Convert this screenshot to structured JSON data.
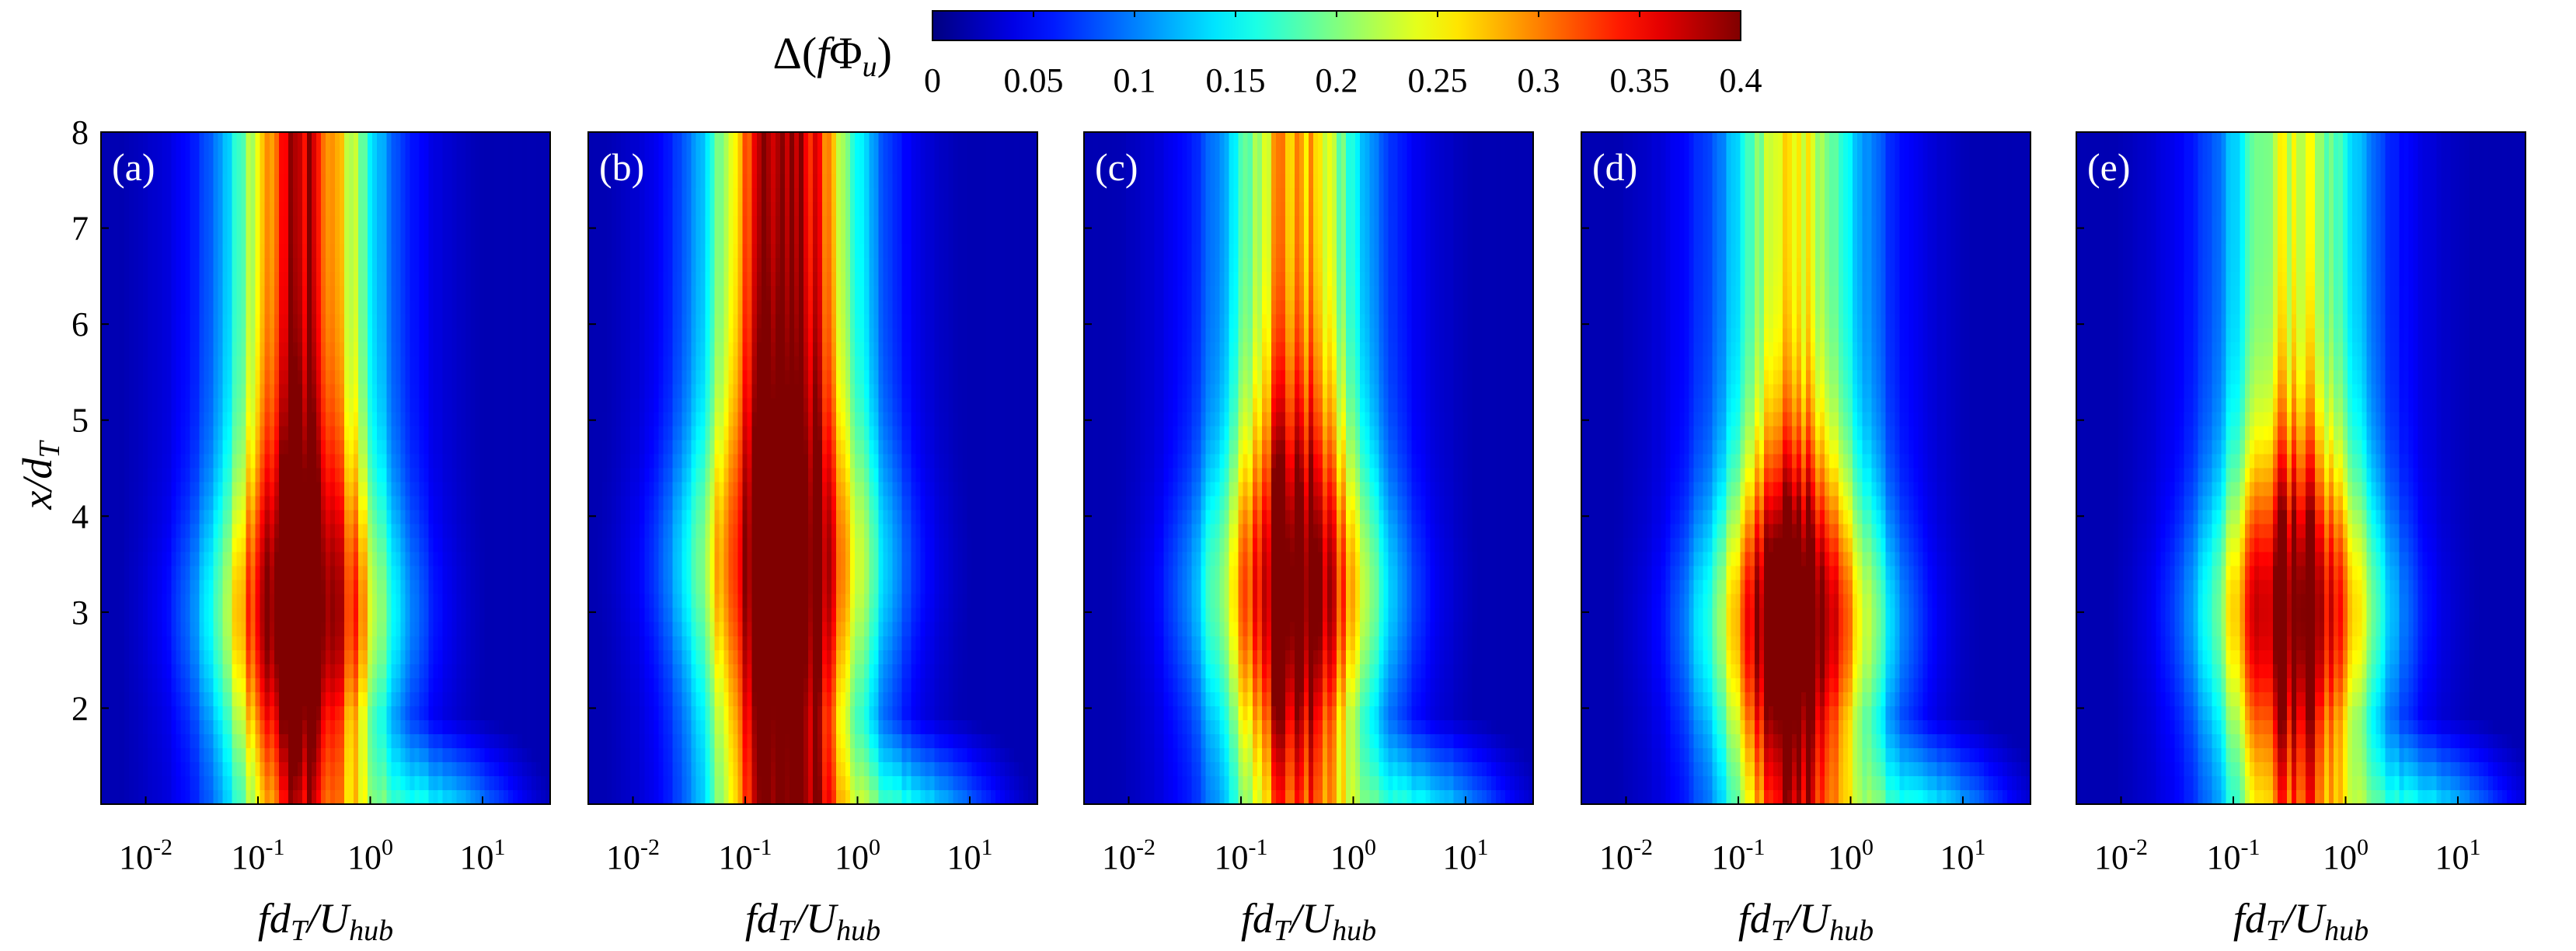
{
  "chart_data": {
    "type": "heatmap",
    "colormap": "jet",
    "colorbar": {
      "label": "Δ(fΦu)",
      "label_parts": {
        "delta": "Δ(",
        "f": "f",
        "phi": "Φ",
        "sub": "u"
      },
      "range": [
        0,
        0.4
      ],
      "ticks": [
        0,
        0.05,
        0.1,
        0.15,
        0.2,
        0.25,
        0.3,
        0.35,
        0.4
      ],
      "tick_labels": [
        "0",
        "0.05",
        "0.1",
        "0.15",
        "0.2",
        "0.25",
        "0.3",
        "0.35",
        "0.4"
      ]
    },
    "shared": {
      "xscale": "log",
      "xlim": [
        0.004,
        40
      ],
      "ylim": [
        1,
        8
      ],
      "xticks": [
        0.01,
        0.1,
        1,
        10
      ],
      "xtick_labels": [
        {
          "base": "10",
          "exp": "-2"
        },
        {
          "base": "10",
          "exp": "-1"
        },
        {
          "base": "10",
          "exp": "0"
        },
        {
          "base": "10",
          "exp": "1"
        }
      ],
      "yticks": [
        2,
        3,
        4,
        5,
        6,
        7,
        8
      ],
      "ytick_labels": [
        "2",
        "3",
        "4",
        "5",
        "6",
        "7",
        "8"
      ],
      "xlabel": "fdT/Uhub",
      "xlabel_parts": {
        "pre": "fd",
        "sub1": "T",
        "slash": "/U",
        "sub2": "hub"
      },
      "ylabel": "x/dT",
      "ylabel_parts": {
        "pre": "x/d",
        "sub": "T"
      }
    },
    "panels": [
      {
        "label": "(a)",
        "peak": 0.4,
        "x_peak": 0.25,
        "y_peak": 3.0,
        "width_decades": 0.4,
        "near_wake": 0.22,
        "far_wake": 0.3,
        "y_spread": 2.0
      },
      {
        "label": "(b)",
        "peak": 0.4,
        "x_peak": 0.22,
        "y_peak": 3.5,
        "width_decades": 0.42,
        "near_wake": 0.33,
        "far_wake": 0.34,
        "y_spread": 2.6
      },
      {
        "label": "(c)",
        "peak": 0.37,
        "x_peak": 0.3,
        "y_peak": 3.2,
        "width_decades": 0.4,
        "near_wake": 0.2,
        "far_wake": 0.22,
        "y_spread": 2.0
      },
      {
        "label": "(d)",
        "peak": 0.39,
        "x_peak": 0.32,
        "y_peak": 2.9,
        "width_decades": 0.4,
        "near_wake": 0.24,
        "far_wake": 0.18,
        "y_spread": 1.8
      },
      {
        "label": "(e)",
        "peak": 0.36,
        "x_peak": 0.35,
        "y_peak": 3.0,
        "width_decades": 0.4,
        "near_wake": 0.2,
        "far_wake": 0.17,
        "y_spread": 1.8
      }
    ]
  }
}
